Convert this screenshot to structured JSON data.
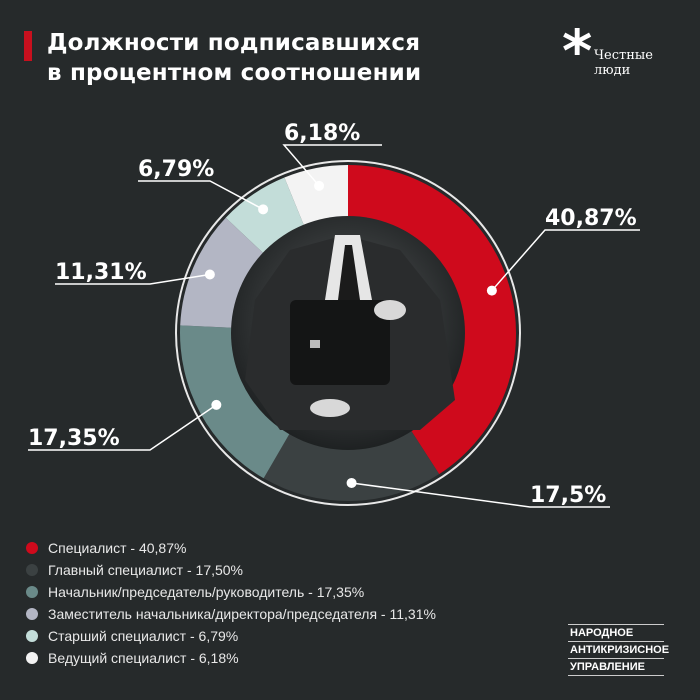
{
  "header": {
    "title_line1": "Должности подписавшихся",
    "title_line2": "в процентном соотношении",
    "brand_icon": "asterisk-icon",
    "brand_line1": "Честные",
    "brand_line2": "люди"
  },
  "chart_data": {
    "type": "pie",
    "title": "Должности подписавшихся в процентном соотношении",
    "donut": true,
    "start": "top",
    "direction": "clockwise",
    "slices": [
      {
        "label": "Специалист",
        "value": 40.87,
        "data_label": "40,87%",
        "legend": "Специалист - 40,87%",
        "color": "#cf0a1c"
      },
      {
        "label": "Главный специалист",
        "value": 17.5,
        "data_label": "17,5%",
        "legend": "Главный специалист - 17,50%",
        "color": "#3b4142"
      },
      {
        "label": "Начальник/председатель/руководитель",
        "value": 17.35,
        "data_label": "17,35%",
        "legend": "Начальник/председатель/руководитель - 17,35%",
        "color": "#6a8a89"
      },
      {
        "label": "Заместитель начальника/директора/председателя",
        "value": 11.31,
        "data_label": "11,31%",
        "legend": "Заместитель начальника/директора/председателя - 11,31%",
        "color": "#b3b6c4"
      },
      {
        "label": "Старший специалист",
        "value": 6.79,
        "data_label": "6,79%",
        "legend": "Старший специалист - 6,79%",
        "color": "#c3ddd9"
      },
      {
        "label": "Ведущий специалист",
        "value": 6.18,
        "data_label": "6,18%",
        "legend": "Ведущий специалист - 6,18%",
        "color": "#f3f3f3"
      }
    ],
    "legend_placement": "bottom-left"
  },
  "footer": {
    "org_line1": "НАРОДНОЕ",
    "org_line2": "АНТИКРИЗИСНОЕ",
    "org_line3": "УПРАВЛЕНИЕ"
  }
}
